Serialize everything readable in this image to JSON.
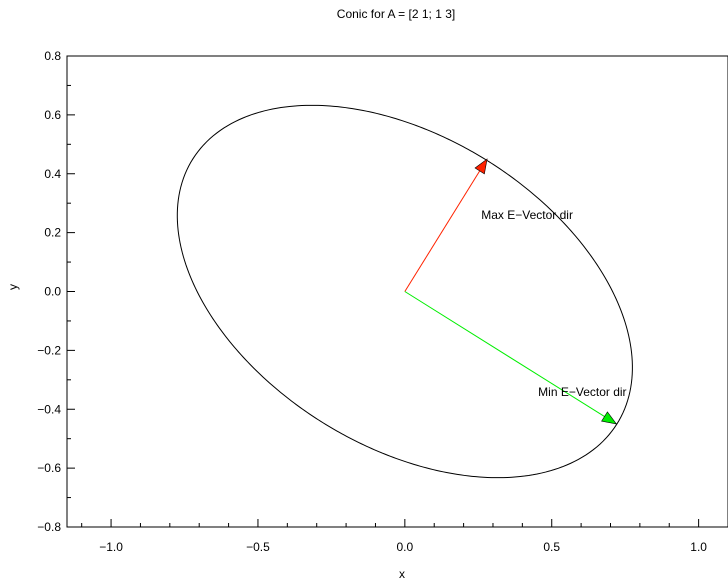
{
  "chart_data": {
    "type": "line",
    "title": "Conic for A = [2 1; 1 3]",
    "xlabel": "x",
    "ylabel": "y",
    "xlim": [
      -1.15,
      1.1
    ],
    "ylim": [
      -0.8,
      0.8
    ],
    "xticks": [
      -1.0,
      -0.5,
      0.0,
      0.5,
      1.0
    ],
    "xtick_labels": [
      "−1.0",
      "−0.5",
      "0.0",
      "0.5",
      "1.0"
    ],
    "yticks": [
      -0.8,
      -0.6,
      -0.4,
      -0.2,
      0.0,
      0.2,
      0.4,
      0.6,
      0.8
    ],
    "ytick_labels": [
      "−0.8",
      "−0.6",
      "−0.4",
      "−0.2",
      "0.0",
      "0.2",
      "0.4",
      "0.6",
      "0.8"
    ],
    "grid": false,
    "conic": {
      "matrix": [
        [
          2,
          1
        ],
        [
          1,
          3
        ]
      ],
      "equation_rhs": 1,
      "color": "#000000"
    },
    "vectors": [
      {
        "label": "Max E−Vector dir",
        "from": [
          0,
          0
        ],
        "to": [
          0.28,
          0.45
        ],
        "color": "#ff2200"
      },
      {
        "label": "Min E−Vector dir",
        "from": [
          0,
          0
        ],
        "to": [
          0.72,
          -0.45
        ],
        "color": "#00ee00"
      }
    ]
  }
}
